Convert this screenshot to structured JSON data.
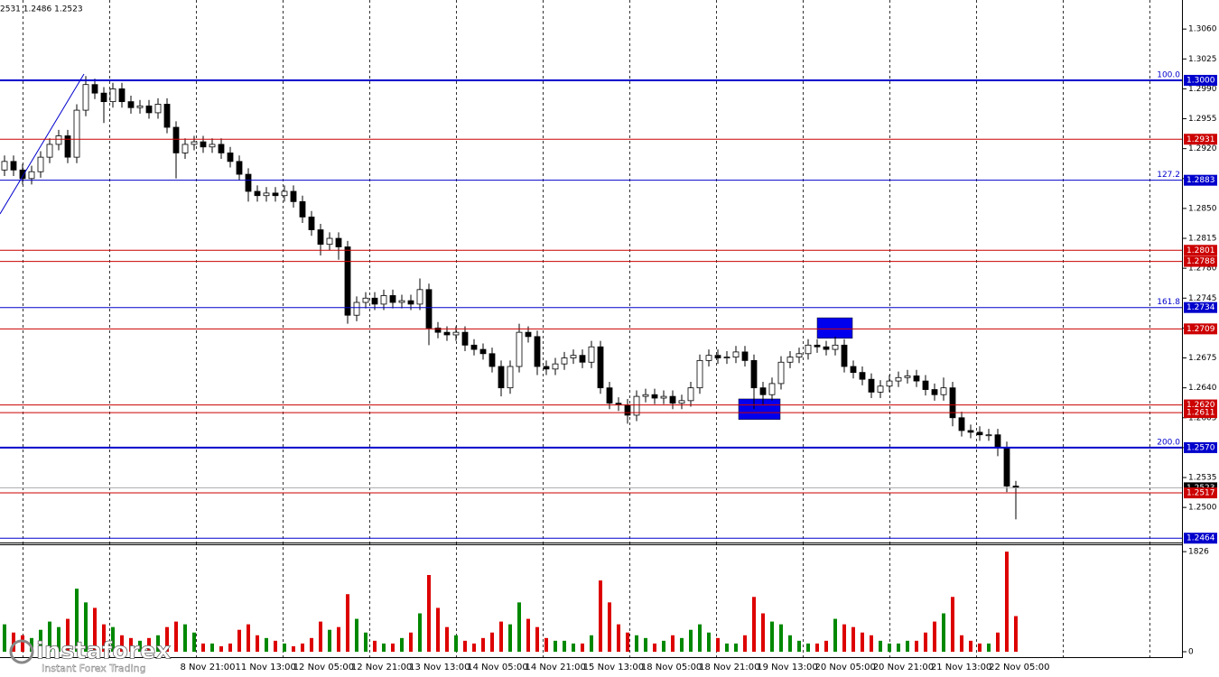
{
  "chart_data": {
    "type": "candlestick",
    "header_text": "2531 1.2486 1.2523",
    "watermark": {
      "brand": "instaforex",
      "tagline": "Instant Forex Trading"
    },
    "open": [
      1.2895,
      1.2905,
      1.2895,
      1.2885,
      1.2893,
      1.291,
      1.2925,
      1.2935,
      1.291,
      1.2965,
      1.2995,
      1.2985,
      1.2975,
      1.299,
      1.2975,
      1.2968,
      1.297,
      1.2962,
      1.2972,
      1.2945,
      1.2915,
      1.2925,
      1.2928,
      1.2922,
      1.2925,
      1.2915,
      1.2905,
      1.289,
      1.287,
      1.2865,
      1.2868,
      1.2865,
      1.287,
      1.2858,
      1.284,
      1.2825,
      1.2808,
      1.2815,
      1.2805,
      1.2725,
      1.274,
      1.2745,
      1.2738,
      1.2748,
      1.274,
      1.2742,
      1.2738,
      1.2755,
      1.271,
      1.2705,
      1.2702,
      1.2705,
      1.269,
      1.2685,
      1.268,
      1.2665,
      1.264,
      1.2665,
      1.2705,
      1.27,
      1.2665,
      1.2662,
      1.2668,
      1.2675,
      1.2678,
      1.267,
      1.2688,
      1.264,
      1.2622,
      1.262,
      1.2608,
      1.263,
      1.2632,
      1.2628,
      1.263,
      1.2622,
      1.2625,
      1.264,
      1.2672,
      1.2678,
      1.2675,
      1.2676,
      1.2682,
      1.2672,
      1.264,
      1.2632,
      1.2645,
      1.267,
      1.2676,
      1.268,
      1.269,
      1.2688,
      1.2685,
      1.269,
      1.2665,
      1.2658,
      1.265,
      1.2635,
      1.2642,
      1.2648,
      1.2652,
      1.2654,
      1.2648,
      1.2638,
      1.2632,
      1.264,
      1.2605,
      1.259,
      1.2588,
      1.2585,
      1.2585,
      1.257,
      1.2525
    ],
    "high": [
      1.2912,
      1.2912,
      1.2902,
      1.29,
      1.2917,
      1.2932,
      1.2942,
      1.2942,
      1.2972,
      1.3005,
      1.3002,
      1.2992,
      1.2997,
      1.2997,
      1.2982,
      1.2977,
      1.2977,
      1.2979,
      1.2979,
      1.2952,
      1.2932,
      1.2935,
      1.2935,
      1.2932,
      1.2932,
      1.2922,
      1.2912,
      1.2897,
      1.2877,
      1.2875,
      1.2875,
      1.2877,
      1.2877,
      1.2865,
      1.2847,
      1.2832,
      1.2822,
      1.2822,
      1.2812,
      1.2747,
      1.2752,
      1.2752,
      1.2755,
      1.2755,
      1.2749,
      1.2749,
      1.2768,
      1.2762,
      1.2717,
      1.2712,
      1.2712,
      1.2712,
      1.2697,
      1.2692,
      1.2687,
      1.2672,
      1.2672,
      1.2715,
      1.2712,
      1.2707,
      1.2672,
      1.2675,
      1.2682,
      1.2685,
      1.2685,
      1.2695,
      1.2695,
      1.2647,
      1.2629,
      1.2627,
      1.2637,
      1.2639,
      1.2639,
      1.2637,
      1.2637,
      1.2632,
      1.2647,
      1.2679,
      1.2685,
      1.2685,
      1.2683,
      1.2689,
      1.2689,
      1.2679,
      1.2647,
      1.2652,
      1.2677,
      1.2683,
      1.2687,
      1.2697,
      1.2697,
      1.2695,
      1.27,
      1.2697,
      1.2672,
      1.2665,
      1.2657,
      1.2649,
      1.2655,
      1.2659,
      1.2661,
      1.2661,
      1.2655,
      1.2645,
      1.2652,
      1.2647,
      1.2612,
      1.2597,
      1.2595,
      1.2592,
      1.2592,
      1.2577,
      1.2531
    ],
    "low": [
      1.2888,
      1.2888,
      1.2878,
      1.2878,
      1.2886,
      1.2903,
      1.2918,
      1.2903,
      1.2903,
      1.2958,
      1.2978,
      1.295,
      1.2968,
      1.2968,
      1.2961,
      1.2961,
      1.2955,
      1.2955,
      1.2938,
      1.2885,
      1.2908,
      1.2918,
      1.2915,
      1.2915,
      1.2908,
      1.2898,
      1.2883,
      1.2858,
      1.2858,
      1.2858,
      1.2858,
      1.2858,
      1.2851,
      1.2833,
      1.2818,
      1.2795,
      1.2801,
      1.279,
      1.2715,
      1.2718,
      1.2733,
      1.2731,
      1.2731,
      1.2733,
      1.2733,
      1.2731,
      1.2731,
      1.269,
      1.2698,
      1.2695,
      1.2695,
      1.2683,
      1.2678,
      1.2673,
      1.2658,
      1.263,
      1.2633,
      1.2658,
      1.2693,
      1.2655,
      1.2655,
      1.2655,
      1.2661,
      1.2668,
      1.2663,
      1.2663,
      1.2633,
      1.2615,
      1.2613,
      1.2598,
      1.2601,
      1.2623,
      1.2621,
      1.2621,
      1.2615,
      1.2615,
      1.2618,
      1.2633,
      1.2665,
      1.2668,
      1.2668,
      1.2669,
      1.2665,
      1.2615,
      1.262,
      1.2625,
      1.2638,
      1.2663,
      1.2669,
      1.2673,
      1.2681,
      1.2678,
      1.2678,
      1.2658,
      1.2651,
      1.2643,
      1.2628,
      1.2628,
      1.2635,
      1.2641,
      1.2645,
      1.2641,
      1.2631,
      1.2625,
      1.2625,
      1.2595,
      1.2583,
      1.2581,
      1.2578,
      1.2578,
      1.256,
      1.2518,
      1.2486
    ],
    "close": [
      1.2905,
      1.2895,
      1.2885,
      1.2893,
      1.291,
      1.2925,
      1.2935,
      1.291,
      1.2965,
      1.2995,
      1.2985,
      1.2975,
      1.299,
      1.2975,
      1.2968,
      1.297,
      1.2962,
      1.2972,
      1.2945,
      1.2915,
      1.2925,
      1.2928,
      1.2922,
      1.2925,
      1.2915,
      1.2905,
      1.289,
      1.287,
      1.2865,
      1.2868,
      1.2865,
      1.287,
      1.2858,
      1.284,
      1.2825,
      1.2808,
      1.2815,
      1.2805,
      1.2725,
      1.274,
      1.2745,
      1.2738,
      1.2748,
      1.274,
      1.2742,
      1.2738,
      1.2755,
      1.271,
      1.2705,
      1.2702,
      1.2705,
      1.269,
      1.2685,
      1.268,
      1.2665,
      1.264,
      1.2665,
      1.2705,
      1.27,
      1.2665,
      1.2662,
      1.2668,
      1.2675,
      1.2678,
      1.267,
      1.2688,
      1.264,
      1.2622,
      1.262,
      1.2608,
      1.263,
      1.2632,
      1.2628,
      1.263,
      1.2622,
      1.2625,
      1.264,
      1.2672,
      1.2678,
      1.2675,
      1.2676,
      1.2682,
      1.2672,
      1.264,
      1.2632,
      1.2645,
      1.267,
      1.2676,
      1.268,
      1.269,
      1.2688,
      1.2685,
      1.269,
      1.2665,
      1.2658,
      1.265,
      1.2635,
      1.2642,
      1.2648,
      1.2652,
      1.2654,
      1.2648,
      1.2638,
      1.2632,
      1.264,
      1.2605,
      1.259,
      1.2588,
      1.2585,
      1.2585,
      1.257,
      1.2525,
      1.2523
    ],
    "volume": [
      500,
      350,
      300,
      250,
      400,
      550,
      450,
      600,
      1150,
      900,
      800,
      500,
      450,
      300,
      250,
      200,
      250,
      300,
      450,
      550,
      500,
      350,
      150,
      150,
      100,
      150,
      400,
      500,
      300,
      250,
      200,
      150,
      100,
      150,
      250,
      550,
      400,
      450,
      1050,
      600,
      350,
      200,
      150,
      150,
      250,
      350,
      700,
      1400,
      800,
      450,
      300,
      200,
      150,
      250,
      350,
      550,
      500,
      900,
      600,
      450,
      250,
      200,
      200,
      150,
      150,
      300,
      1300,
      900,
      500,
      350,
      300,
      250,
      150,
      200,
      300,
      250,
      400,
      500,
      350,
      250,
      150,
      150,
      300,
      1000,
      700,
      550,
      500,
      300,
      200,
      150,
      150,
      200,
      600,
      500,
      450,
      350,
      300,
      200,
      150,
      150,
      200,
      200,
      350,
      550,
      700,
      1000,
      300,
      200,
      150,
      150,
      350,
      1826,
      650
    ],
    "candle_up_color": "#ffffff",
    "candle_down_color": "#000000",
    "volume_up_color": "#008800",
    "volume_down_color": "#dd0000",
    "ylim": [
      1.246,
      1.3094
    ],
    "yticks": [
      {
        "value": 1.306,
        "label": "1.3060"
      },
      {
        "value": 1.3025,
        "label": "1.3025"
      },
      {
        "value": 1.299,
        "label": "1.2990"
      },
      {
        "value": 1.2955,
        "label": "1.2955"
      },
      {
        "value": 1.292,
        "label": "1.2920"
      },
      {
        "value": 1.2885,
        "label": "1.2885"
      },
      {
        "value": 1.285,
        "label": "1.2850"
      },
      {
        "value": 1.2815,
        "label": "1.2815"
      },
      {
        "value": 1.278,
        "label": "1.2780"
      },
      {
        "value": 1.2745,
        "label": "1.2745"
      },
      {
        "value": 1.271,
        "label": "1.2710"
      },
      {
        "value": 1.2675,
        "label": "1.2675"
      },
      {
        "value": 1.264,
        "label": "1.2640"
      },
      {
        "value": 1.2605,
        "label": "1.2605"
      },
      {
        "value": 1.257,
        "label": "1.2570"
      },
      {
        "value": 1.2535,
        "label": "1.2535"
      },
      {
        "value": 1.25,
        "label": "1.2500"
      }
    ],
    "volume_ylim": [
      0,
      1960
    ],
    "volume_ticks": [
      1826,
      0
    ],
    "x_labels": [
      "8 Nov 21:00",
      "11 Nov 13:00",
      "12 Nov 05:00",
      "12 Nov 21:00",
      "13 Nov 13:00",
      "14 Nov 05:00",
      "14 Nov 21:00",
      "15 Nov 13:00",
      "18 Nov 05:00",
      "18 Nov 21:00",
      "19 Nov 13:00",
      "20 Nov 05:00",
      "20 Nov 21:00",
      "21 Nov 13:00",
      "22 Nov 05:00"
    ],
    "last_price": {
      "value": 1.2523,
      "label": "1.2523"
    },
    "levels": [
      {
        "value": 1.3,
        "label": "1.3000",
        "color": "#0000cc",
        "width": 2,
        "fibo": "100.0"
      },
      {
        "value": 1.2931,
        "label": "1.2931",
        "color": "#cc0000",
        "width": 1
      },
      {
        "value": 1.2883,
        "label": "1.2883",
        "color": "#0000cc",
        "width": 1,
        "fibo": "127.2"
      },
      {
        "value": 1.2801,
        "label": "1.2801",
        "color": "#cc0000",
        "width": 1
      },
      {
        "value": 1.2788,
        "label": "1.2788",
        "color": "#cc0000",
        "width": 1
      },
      {
        "value": 1.2734,
        "label": "1.2734",
        "color": "#0000cc",
        "width": 1,
        "fibo": "161.8"
      },
      {
        "value": 1.2709,
        "label": "1.2709",
        "color": "#cc0000",
        "width": 1
      },
      {
        "value": 1.262,
        "label": "1.2620",
        "color": "#cc0000",
        "width": 1
      },
      {
        "value": 1.2611,
        "label": "1.2611",
        "color": "#cc0000",
        "width": 1
      },
      {
        "value": 1.257,
        "label": "1.2570",
        "color": "#0000cc",
        "width": 2,
        "fibo": "200.0"
      },
      {
        "value": 1.2517,
        "label": "1.2517",
        "color": "#cc0000",
        "width": 1
      },
      {
        "value": 1.2464,
        "label": "1.2464",
        "color": "#0000cc",
        "width": 1
      }
    ],
    "zones": [
      {
        "low": 1.2603,
        "high": 1.2627,
        "color": "#0000ee"
      },
      {
        "low": 1.2698,
        "high": 1.2722,
        "color": "#0000ee"
      }
    ]
  }
}
